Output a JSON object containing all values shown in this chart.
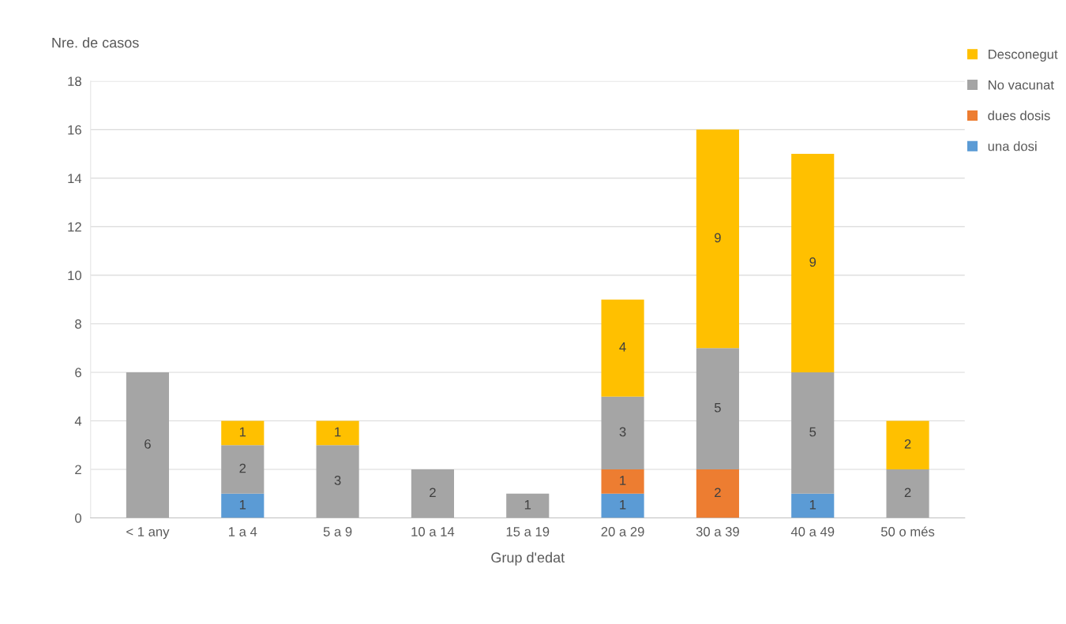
{
  "chart_data": {
    "type": "bar",
    "stacked": true,
    "xlabel": "Grup d'edat",
    "ylabel": "Nre. de casos",
    "categories": [
      "< 1 any",
      "1 a 4",
      "5 a 9",
      "10 a 14",
      "15 a 19",
      "20 a 29",
      "30 a 39",
      "40 a 49",
      "50 o més"
    ],
    "series": [
      {
        "name": "una dosi",
        "color": "#5b9bd5",
        "values": [
          null,
          1,
          null,
          null,
          null,
          1,
          null,
          1,
          null
        ]
      },
      {
        "name": "dues dosis",
        "color": "#ed7d31",
        "values": [
          null,
          null,
          null,
          null,
          null,
          1,
          2,
          null,
          null
        ]
      },
      {
        "name": "No vacunat",
        "color": "#a5a5a5",
        "values": [
          6,
          2,
          3,
          2,
          1,
          3,
          5,
          5,
          2
        ]
      },
      {
        "name": "Desconegut",
        "color": "#ffc000",
        "values": [
          null,
          1,
          1,
          null,
          null,
          4,
          9,
          9,
          2
        ]
      }
    ],
    "ylim": [
      0,
      18
    ],
    "yticks": [
      0,
      2,
      4,
      6,
      8,
      10,
      12,
      14,
      16,
      18
    ],
    "grid": "y",
    "legend": "top right",
    "data_labels": true
  }
}
